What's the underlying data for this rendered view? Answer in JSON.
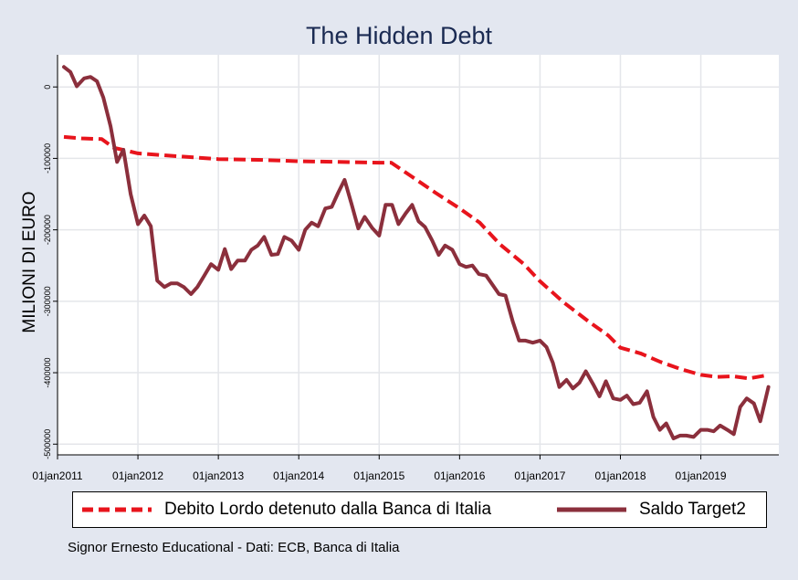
{
  "chart_data": {
    "type": "line",
    "title": "The Hidden Debt",
    "ylabel": "MILIONI DI EURO",
    "xlabel": "",
    "xlim": [
      2011.0,
      2019.97
    ],
    "ylim": [
      -515000,
      45000
    ],
    "grid": true,
    "legend_position": "bottom",
    "x_ticks": [
      {
        "value": 2011,
        "label": "01jan2011"
      },
      {
        "value": 2012,
        "label": "01jan2012"
      },
      {
        "value": 2013,
        "label": "01jan2013"
      },
      {
        "value": 2014,
        "label": "01jan2014"
      },
      {
        "value": 2015,
        "label": "01jan2015"
      },
      {
        "value": 2016,
        "label": "01jan2016"
      },
      {
        "value": 2017,
        "label": "01jan2017"
      },
      {
        "value": 2018,
        "label": "01jan2018"
      },
      {
        "value": 2019,
        "label": "01jan2019"
      }
    ],
    "y_ticks": [
      {
        "value": 0,
        "label": "0"
      },
      {
        "value": -100000,
        "label": "-100000"
      },
      {
        "value": -200000,
        "label": "-200000"
      },
      {
        "value": -300000,
        "label": "-300000"
      },
      {
        "value": -400000,
        "label": "-400000"
      },
      {
        "value": -500000,
        "label": "-500000"
      }
    ],
    "series": [
      {
        "name": "Debito Lordo detenuto dalla Banca di Italia",
        "color": "#e8141c",
        "style": "dashed",
        "points": [
          [
            2011.08,
            -70000
          ],
          [
            2011.3,
            -72000
          ],
          [
            2011.55,
            -73000
          ],
          [
            2011.7,
            -85000
          ],
          [
            2012.0,
            -93000
          ],
          [
            2012.5,
            -97000
          ],
          [
            2013.0,
            -101000
          ],
          [
            2013.5,
            -102000
          ],
          [
            2014.0,
            -104000
          ],
          [
            2014.5,
            -105000
          ],
          [
            2015.0,
            -106000
          ],
          [
            2015.15,
            -106000
          ],
          [
            2015.4,
            -125000
          ],
          [
            2015.7,
            -148000
          ],
          [
            2016.0,
            -170000
          ],
          [
            2016.25,
            -190000
          ],
          [
            2016.5,
            -220000
          ],
          [
            2016.8,
            -248000
          ],
          [
            2017.0,
            -272000
          ],
          [
            2017.3,
            -302000
          ],
          [
            2017.6,
            -328000
          ],
          [
            2017.85,
            -348000
          ],
          [
            2018.0,
            -365000
          ],
          [
            2018.25,
            -373000
          ],
          [
            2018.5,
            -385000
          ],
          [
            2018.75,
            -395000
          ],
          [
            2019.0,
            -403000
          ],
          [
            2019.2,
            -406000
          ],
          [
            2019.4,
            -405000
          ],
          [
            2019.6,
            -408000
          ],
          [
            2019.85,
            -403000
          ]
        ]
      },
      {
        "name": "Saldo Target2",
        "color": "#8b2f3c",
        "style": "solid",
        "points": [
          [
            2011.08,
            28000
          ],
          [
            2011.16,
            21000
          ],
          [
            2011.24,
            1000
          ],
          [
            2011.33,
            12000
          ],
          [
            2011.41,
            14000
          ],
          [
            2011.49,
            8000
          ],
          [
            2011.57,
            -15000
          ],
          [
            2011.66,
            -55000
          ],
          [
            2011.74,
            -105000
          ],
          [
            2011.82,
            -88000
          ],
          [
            2011.91,
            -150000
          ],
          [
            2012.0,
            -192000
          ],
          [
            2012.08,
            -180000
          ],
          [
            2012.16,
            -195000
          ],
          [
            2012.24,
            -271000
          ],
          [
            2012.33,
            -280000
          ],
          [
            2012.41,
            -275000
          ],
          [
            2012.49,
            -275000
          ],
          [
            2012.57,
            -280000
          ],
          [
            2012.66,
            -290000
          ],
          [
            2012.74,
            -280000
          ],
          [
            2012.82,
            -265000
          ],
          [
            2012.91,
            -248000
          ],
          [
            2013.0,
            -256000
          ],
          [
            2013.08,
            -227000
          ],
          [
            2013.16,
            -255000
          ],
          [
            2013.24,
            -243000
          ],
          [
            2013.33,
            -243000
          ],
          [
            2013.41,
            -228000
          ],
          [
            2013.49,
            -222000
          ],
          [
            2013.57,
            -210000
          ],
          [
            2013.66,
            -235000
          ],
          [
            2013.74,
            -234000
          ],
          [
            2013.82,
            -210000
          ],
          [
            2013.91,
            -215000
          ],
          [
            2014.0,
            -228000
          ],
          [
            2014.08,
            -200000
          ],
          [
            2014.16,
            -190000
          ],
          [
            2014.24,
            -195000
          ],
          [
            2014.33,
            -170000
          ],
          [
            2014.41,
            -168000
          ],
          [
            2014.49,
            -148000
          ],
          [
            2014.57,
            -130000
          ],
          [
            2014.66,
            -165000
          ],
          [
            2014.74,
            -198000
          ],
          [
            2014.82,
            -182000
          ],
          [
            2014.91,
            -197000
          ],
          [
            2015.0,
            -208000
          ],
          [
            2015.08,
            -165000
          ],
          [
            2015.16,
            -165000
          ],
          [
            2015.24,
            -192000
          ],
          [
            2015.33,
            -177000
          ],
          [
            2015.41,
            -165000
          ],
          [
            2015.49,
            -188000
          ],
          [
            2015.57,
            -196000
          ],
          [
            2015.66,
            -215000
          ],
          [
            2015.74,
            -235000
          ],
          [
            2015.82,
            -222000
          ],
          [
            2015.91,
            -228000
          ],
          [
            2016.0,
            -248000
          ],
          [
            2016.08,
            -252000
          ],
          [
            2016.16,
            -250000
          ],
          [
            2016.24,
            -262000
          ],
          [
            2016.33,
            -264000
          ],
          [
            2016.41,
            -277000
          ],
          [
            2016.49,
            -290000
          ],
          [
            2016.57,
            -292000
          ],
          [
            2016.66,
            -328000
          ],
          [
            2016.74,
            -355000
          ],
          [
            2016.82,
            -355000
          ],
          [
            2016.91,
            -358000
          ],
          [
            2017.0,
            -355000
          ],
          [
            2017.08,
            -364000
          ],
          [
            2017.16,
            -386000
          ],
          [
            2017.24,
            -420000
          ],
          [
            2017.33,
            -410000
          ],
          [
            2017.41,
            -422000
          ],
          [
            2017.49,
            -414000
          ],
          [
            2017.57,
            -398000
          ],
          [
            2017.66,
            -416000
          ],
          [
            2017.74,
            -433000
          ],
          [
            2017.82,
            -412000
          ],
          [
            2017.91,
            -436000
          ],
          [
            2018.0,
            -438000
          ],
          [
            2018.08,
            -432000
          ],
          [
            2018.16,
            -444000
          ],
          [
            2018.24,
            -442000
          ],
          [
            2018.33,
            -426000
          ],
          [
            2018.41,
            -462000
          ],
          [
            2018.49,
            -480000
          ],
          [
            2018.57,
            -471000
          ],
          [
            2018.66,
            -492000
          ],
          [
            2018.74,
            -488000
          ],
          [
            2018.82,
            -488000
          ],
          [
            2018.91,
            -490000
          ],
          [
            2019.0,
            -480000
          ],
          [
            2019.08,
            -480000
          ],
          [
            2019.16,
            -482000
          ],
          [
            2019.24,
            -474000
          ],
          [
            2019.33,
            -480000
          ],
          [
            2019.41,
            -486000
          ],
          [
            2019.49,
            -448000
          ],
          [
            2019.57,
            -436000
          ],
          [
            2019.66,
            -443000
          ],
          [
            2019.74,
            -468000
          ],
          [
            2019.84,
            -420000
          ]
        ]
      }
    ]
  },
  "caption": "Signor Ernesto Educational - Dati: ECB, Banca di Italia"
}
